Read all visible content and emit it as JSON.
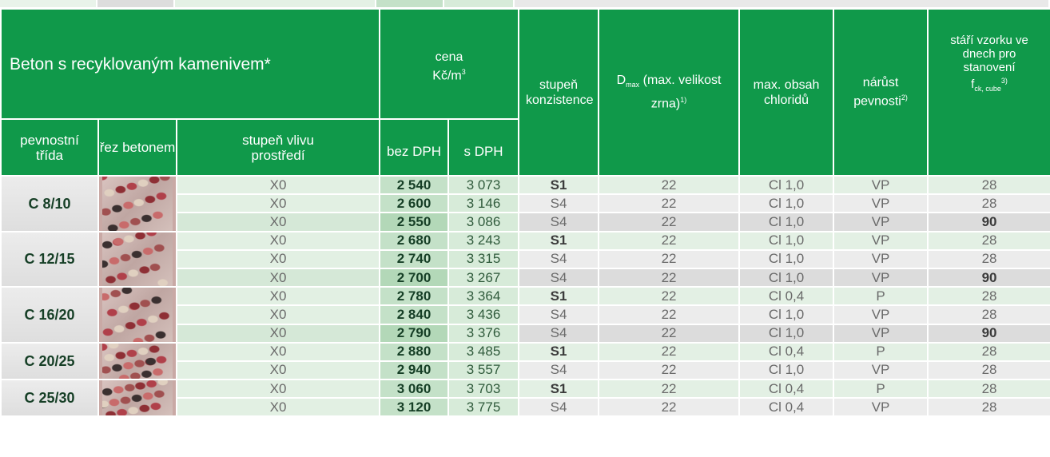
{
  "header": {
    "title": "Beton s recyklovaným kamenivem*",
    "price": {
      "label": "cena",
      "unit": "Kč/m",
      "unit_sup": "3",
      "without_vat": "bez DPH",
      "with_vat": "s DPH"
    },
    "class": "pevnostní třída",
    "section": "řez betonem",
    "exposure": "stupeň vlivu prostředí",
    "consistency": "stupeň konzistence",
    "dmax": {
      "symbol": "D",
      "sub": "max",
      "text": " (max. velikost zrna)",
      "note": "1)"
    },
    "chlorides": "max. obsah chloridů",
    "strength_gain": {
      "text": "nárůst pevnosti",
      "note": "2)"
    },
    "age": {
      "text": "stáří vzorku ve dnech pro stanovení",
      "symbol": "f",
      "sub": "ck, cube",
      "note": "3)"
    }
  },
  "groups": [
    {
      "class": "C 8/10",
      "rows": [
        [
          "X0",
          "2 540",
          "3 073",
          "S1",
          "22",
          "Cl 1,0",
          "VP",
          "28"
        ],
        [
          "X0",
          "2 600",
          "3 146",
          "S4",
          "22",
          "Cl 1,0",
          "VP",
          "28"
        ],
        [
          "X0",
          "2 550",
          "3 086",
          "S4",
          "22",
          "Cl 1,0",
          "VP",
          "90"
        ]
      ]
    },
    {
      "class": "C 12/15",
      "rows": [
        [
          "X0",
          "2 680",
          "3 243",
          "S1",
          "22",
          "Cl 1,0",
          "VP",
          "28"
        ],
        [
          "X0",
          "2 740",
          "3 315",
          "S4",
          "22",
          "Cl 1,0",
          "VP",
          "28"
        ],
        [
          "X0",
          "2 700",
          "3 267",
          "S4",
          "22",
          "Cl 1,0",
          "VP",
          "90"
        ]
      ]
    },
    {
      "class": "C 16/20",
      "rows": [
        [
          "X0",
          "2 780",
          "3 364",
          "S1",
          "22",
          "Cl 0,4",
          "P",
          "28"
        ],
        [
          "X0",
          "2 840",
          "3 436",
          "S4",
          "22",
          "Cl 1,0",
          "VP",
          "28"
        ],
        [
          "X0",
          "2 790",
          "3 376",
          "S4",
          "22",
          "Cl 1,0",
          "VP",
          "90"
        ]
      ]
    },
    {
      "class": "C 20/25",
      "rows": [
        [
          "X0",
          "2 880",
          "3 485",
          "S1",
          "22",
          "Cl 0,4",
          "P",
          "28"
        ],
        [
          "X0",
          "2 940",
          "3 557",
          "S4",
          "22",
          "Cl 1,0",
          "VP",
          "28"
        ]
      ]
    },
    {
      "class": "C 25/30",
      "rows": [
        [
          "X0",
          "3 060",
          "3 703",
          "S1",
          "22",
          "Cl 0,4",
          "P",
          "28"
        ],
        [
          "X0",
          "3 120",
          "3 775",
          "S4",
          "22",
          "Cl 0,4",
          "VP",
          "28"
        ]
      ]
    }
  ]
}
